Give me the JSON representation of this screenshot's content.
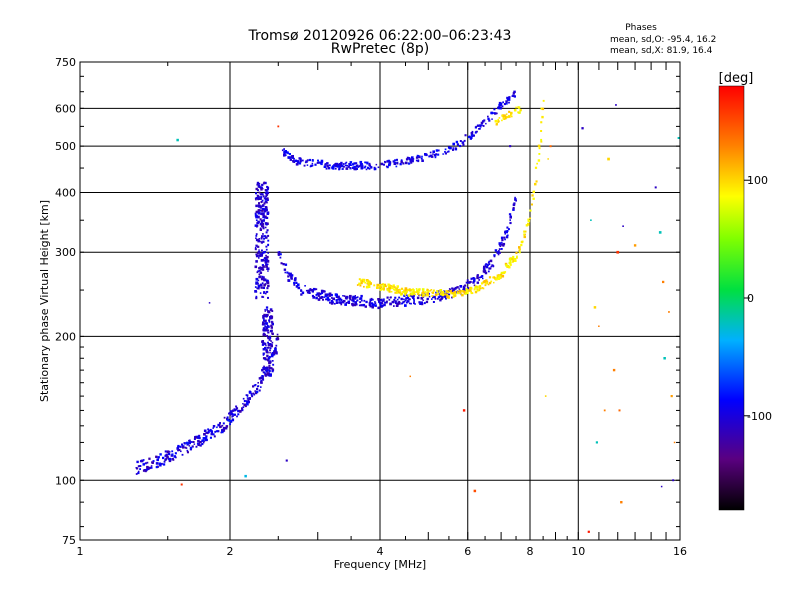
{
  "title": "Tromsø 20120926 06:22:00–06:23:43",
  "subtitle": "RwPretec (8p)",
  "phase_info": {
    "heading": "Phases",
    "line_o": "mean, sd,O: -95.4, 16.2",
    "line_x": "mean, sd,X: 81.9, 16.4"
  },
  "colorbar": {
    "label": "[deg]",
    "ticks": [
      "100",
      "0",
      "-100"
    ],
    "tick_values": [
      100,
      0,
      -100
    ],
    "range": [
      -180,
      180
    ]
  },
  "chart_data": {
    "type": "scatter",
    "xlabel": "Frequency [MHz]",
    "ylabel": "Stationary phase Virtual Height [km]",
    "x_scale": "log",
    "y_scale": "log",
    "xlim": [
      1,
      16
    ],
    "ylim": [
      75,
      750
    ],
    "x_ticks": [
      1,
      2,
      4,
      6,
      8,
      10,
      16
    ],
    "x_tick_labels": [
      "1",
      "2",
      "4",
      "6",
      "8",
      "10",
      "16"
    ],
    "y_ticks": [
      75,
      100,
      200,
      300,
      400,
      500,
      600,
      750
    ],
    "y_tick_labels": [
      "75",
      "100",
      "200",
      "300",
      "400",
      "500",
      "600",
      "750"
    ],
    "grid": true,
    "color_scale": "rainbow, phase in degrees",
    "traces": [
      {
        "name": "",
        "x_range": [
          1.3,
          2.5
        ],
        "y_range": [
          105,
          220
        ],
        "phase": -100
      },
      {
        "name": "",
        "x_range": [
          2.15,
          2.65
        ],
        "y_range": [
          150,
          420
        ],
        "phase": -105
      },
      {
        "name": "",
        "x_range": [
          2.6,
          7.5
        ],
        "y_range": [
          230,
          390
        ],
        "phase": -100
      },
      {
        "name": "",
        "x_range": [
          2.5,
          7.6
        ],
        "y_range": [
          455,
          640
        ],
        "phase": -95
      },
      {
        "name": "",
        "x_range": [
          3.6,
          8.4
        ],
        "y_range": [
          240,
          620
        ],
        "phase": 95
      }
    ]
  }
}
